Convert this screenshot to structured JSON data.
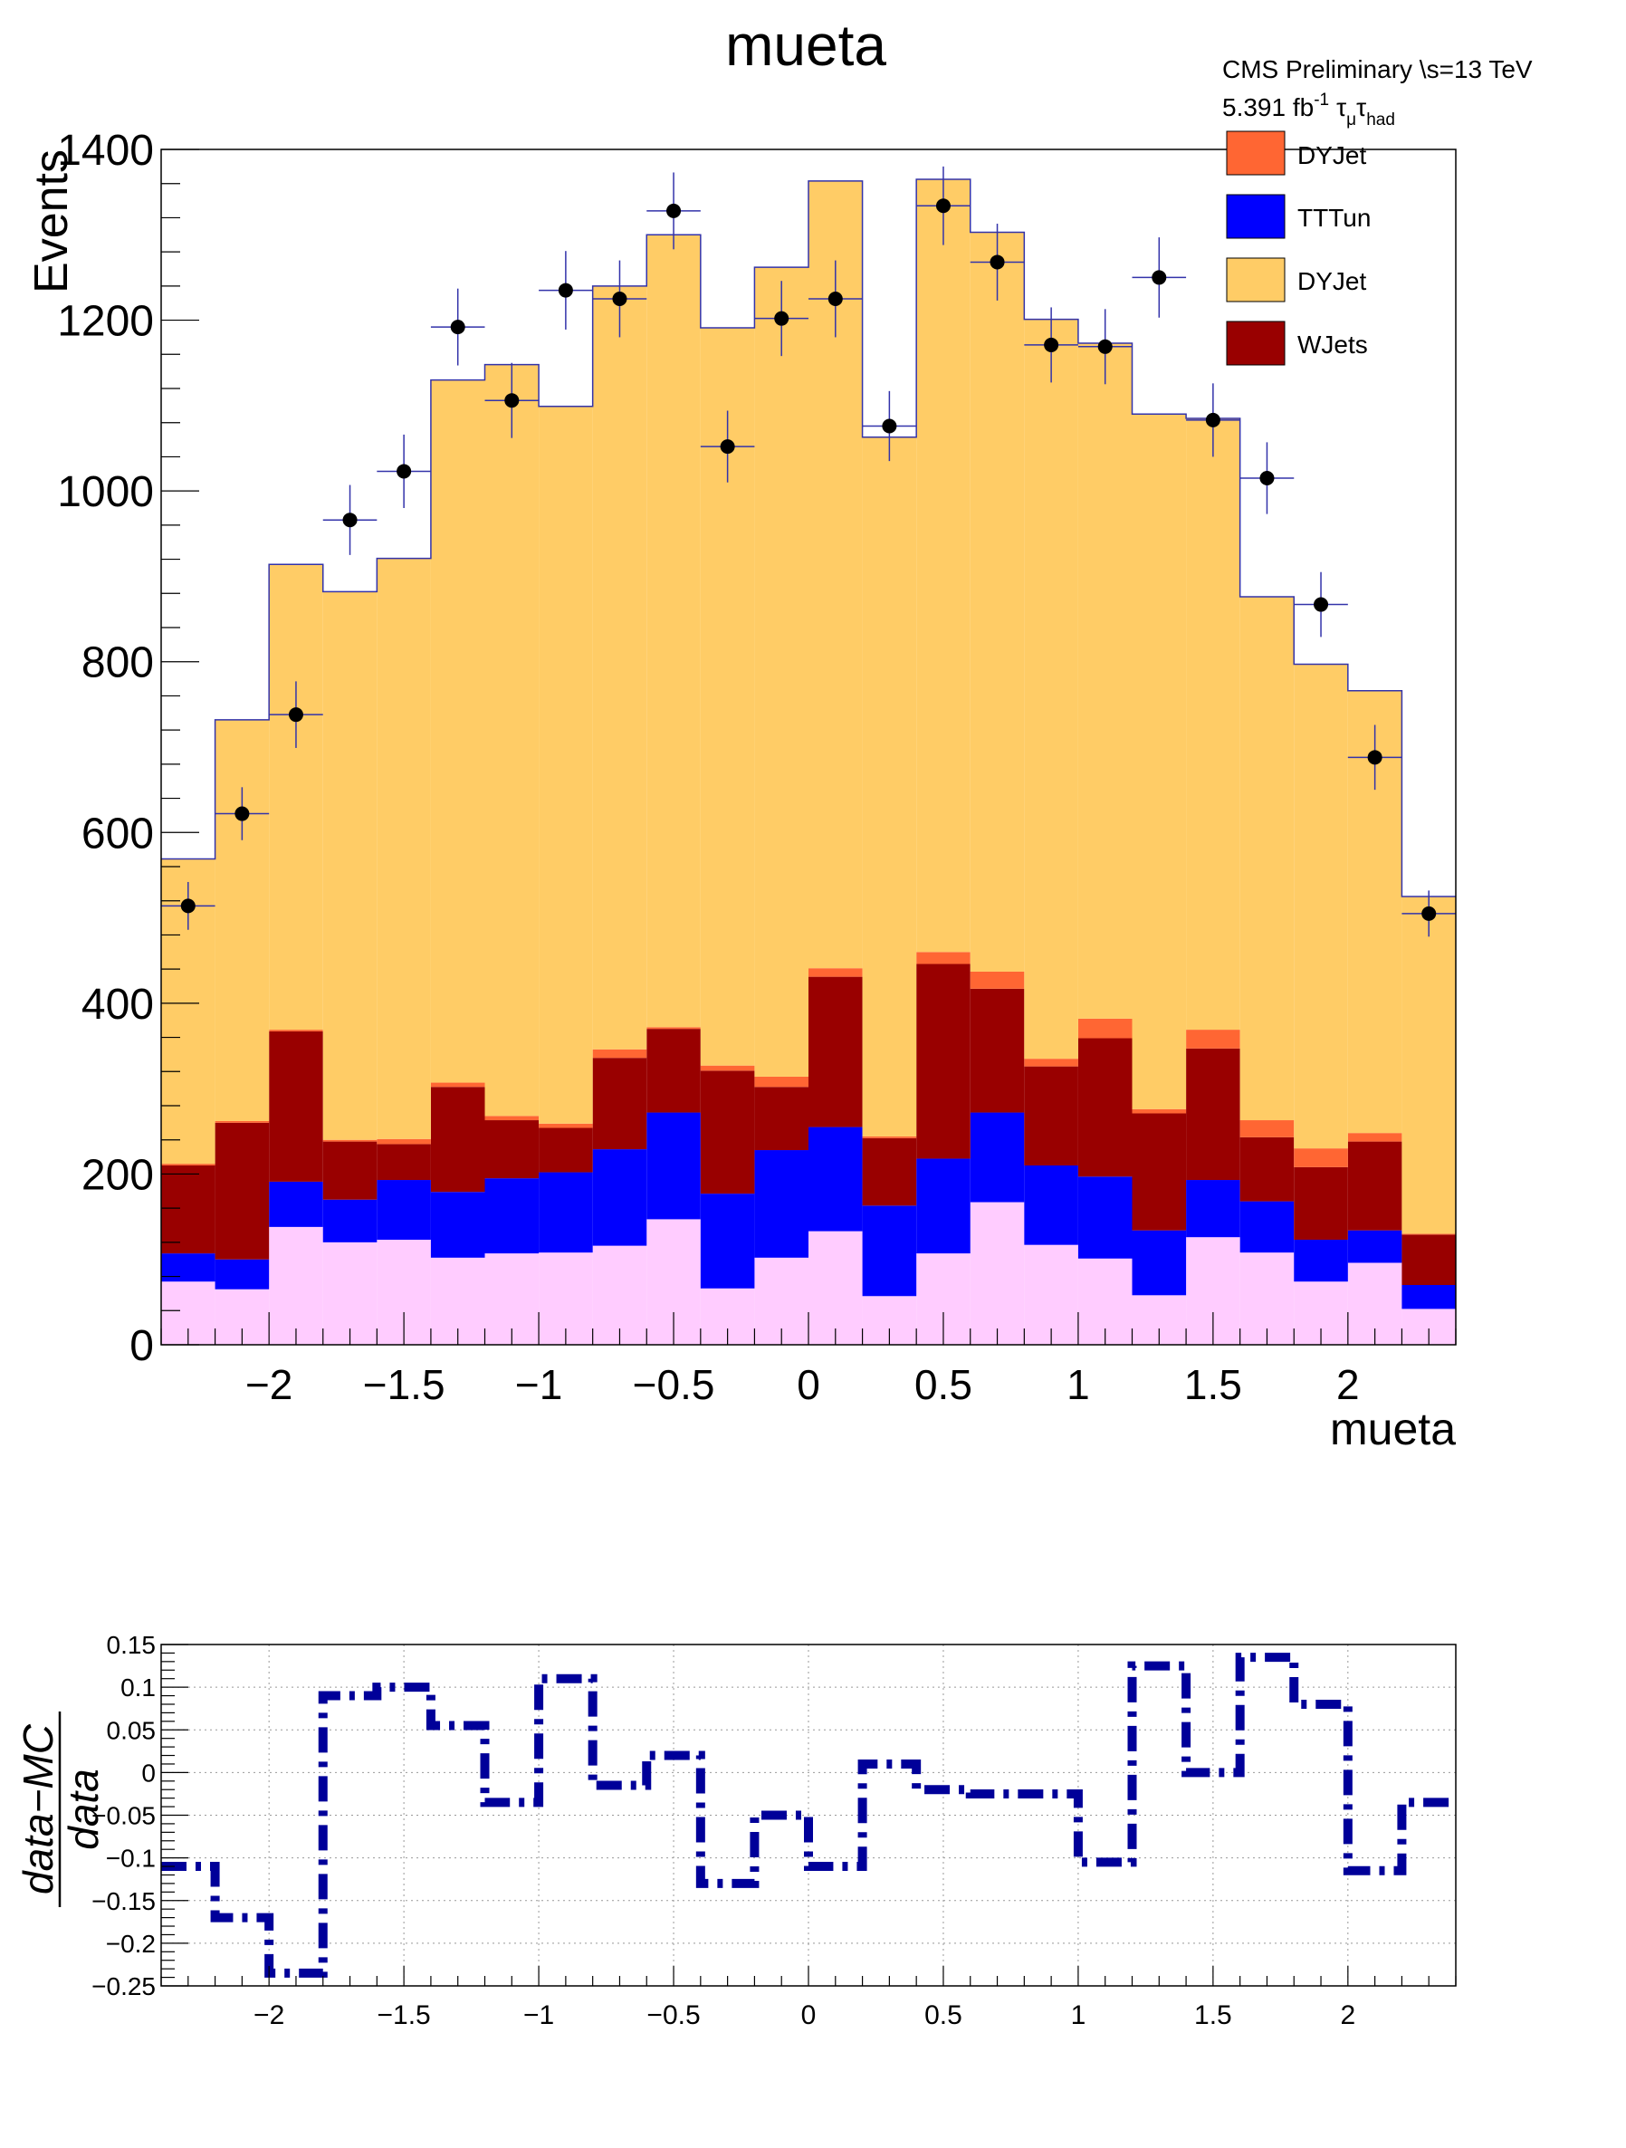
{
  "chart_data": [
    {
      "type": "bar",
      "title": "mueta",
      "xlabel": "mueta",
      "ylabel": "Events",
      "xlim": [
        -2.4,
        2.4
      ],
      "ylim": [
        0,
        1400
      ],
      "bin_edges": [
        -2.4,
        -2.2,
        -2.0,
        -1.8,
        -1.6,
        -1.4,
        -1.2,
        -1.0,
        -0.8,
        -0.6,
        -0.4,
        -0.2,
        0.0,
        0.2,
        0.4,
        0.6,
        0.8,
        1.0,
        1.2,
        1.4,
        1.6,
        1.8,
        2.0,
        2.2,
        2.4
      ],
      "x_ticks": [
        -2,
        -1.5,
        -1,
        -0.5,
        0,
        0.5,
        1,
        1.5,
        2
      ],
      "x_tick_labels": [
        "−2",
        "−1.5",
        "−1",
        "−0.5",
        "0",
        "0.5",
        "1",
        "1.5",
        "2"
      ],
      "y_ticks": [
        0,
        200,
        400,
        600,
        800,
        1000,
        1200,
        1400
      ],
      "y_tick_labels": [
        "0",
        "200",
        "400",
        "600",
        "800",
        "1000",
        "1200",
        "1400"
      ],
      "stacked": true,
      "series": [
        {
          "key": "other",
          "name": "",
          "color": "#ffccff",
          "values": [
            74,
            65,
            138,
            120,
            123,
            102,
            107,
            108,
            116,
            147,
            66,
            102,
            133,
            57,
            107,
            167,
            117,
            101,
            58,
            126,
            108,
            74,
            96,
            42
          ]
        },
        {
          "key": "tttun",
          "name": "TTTun",
          "color": "#0000ff",
          "values": [
            33,
            35,
            53,
            50,
            70,
            77,
            88,
            94,
            113,
            125,
            111,
            126,
            122,
            106,
            111,
            105,
            93,
            96,
            76,
            67,
            60,
            49,
            38,
            28
          ]
        },
        {
          "key": "wjets",
          "name": "WJets",
          "color": "#990000",
          "values": [
            103,
            160,
            176,
            68,
            42,
            123,
            68,
            52,
            107,
            98,
            144,
            74,
            176,
            79,
            228,
            145,
            116,
            162,
            137,
            154,
            75,
            85,
            104,
            59
          ]
        },
        {
          "key": "dyjet_red",
          "name": "DYJet",
          "color": "#ff6633",
          "values": [
            2,
            2,
            2,
            2,
            6,
            5,
            5,
            5,
            10,
            2,
            6,
            12,
            10,
            2,
            14,
            20,
            9,
            23,
            5,
            22,
            20,
            22,
            10,
            1
          ]
        },
        {
          "key": "dyjet_orange",
          "name": "DYJet",
          "color": "#ffcc66",
          "values": [
            357,
            470,
            545,
            642,
            680,
            823,
            880,
            840,
            894,
            928,
            864,
            948,
            922,
            819,
            905,
            866,
            866,
            791,
            814,
            716,
            613,
            567,
            518,
            395
          ]
        }
      ],
      "data_points": [
        514,
        622,
        738,
        966,
        1023,
        1192,
        1106,
        1235,
        1225,
        1328,
        1052,
        1202,
        1225,
        1076,
        1334,
        1268,
        1171,
        1169,
        1250,
        1083,
        1015,
        867,
        688,
        505
      ],
      "data_errors": [
        28,
        31,
        39,
        41,
        43,
        45,
        44,
        46,
        45,
        45,
        42,
        44,
        45,
        41,
        46,
        45,
        44,
        44,
        47,
        43,
        42,
        38,
        38,
        27
      ],
      "legend_placement": "top-right",
      "annotations": [
        "CMS Preliminary  \\s=13 TeV",
        "5.391 fb",
        "-1",
        "τ",
        "μ",
        "τ",
        "had"
      ]
    },
    {
      "type": "line",
      "xlim": [
        -2.4,
        2.4
      ],
      "ylim": [
        -0.25,
        0.15
      ],
      "bin_edges": [
        -2.4,
        -2.2,
        -2.0,
        -1.8,
        -1.6,
        -1.4,
        -1.2,
        -1.0,
        -0.8,
        -0.6,
        -0.4,
        -0.2,
        0.0,
        0.2,
        0.4,
        0.6,
        0.8,
        1.0,
        1.2,
        1.4,
        1.6,
        1.8,
        2.0,
        2.2,
        2.4
      ],
      "x_ticks": [
        -2,
        -1.5,
        -1,
        -0.5,
        0,
        0.5,
        1,
        1.5,
        2
      ],
      "x_tick_labels": [
        "−2",
        "−1.5",
        "−1",
        "−0.5",
        "0",
        "0.5",
        "1",
        "1.5",
        "2"
      ],
      "y_ticks": [
        -0.25,
        -0.2,
        -0.15,
        -0.1,
        -0.05,
        0,
        0.05,
        0.1,
        0.15
      ],
      "y_tick_labels": [
        "−0.25",
        "−0.2",
        "−0.15",
        "−0.1",
        "−0.05",
        "0",
        "0.05",
        "0.1",
        "0.15"
      ],
      "ylabel_numerator": "data−MC",
      "ylabel_denominator": "data",
      "grid": true,
      "line_color": "#000099",
      "values": [
        -0.11,
        -0.17,
        -0.235,
        0.09,
        0.1,
        0.055,
        -0.035,
        0.11,
        -0.015,
        0.02,
        -0.13,
        -0.05,
        -0.11,
        0.01,
        -0.02,
        -0.025,
        -0.025,
        -0.105,
        0.125,
        0.0,
        0.135,
        0.08,
        -0.115,
        -0.035
      ]
    }
  ]
}
